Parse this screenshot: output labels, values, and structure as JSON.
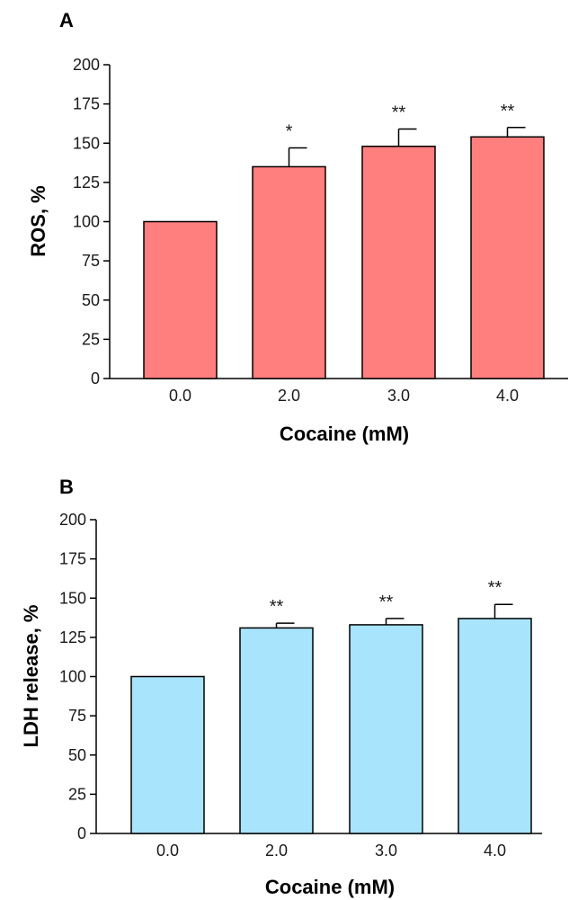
{
  "chart_data": [
    {
      "type": "bar",
      "panel_label": "A",
      "categories": [
        "0.0",
        "2.0",
        "3.0",
        "4.0"
      ],
      "values": [
        100,
        135,
        148,
        154
      ],
      "error_plus": [
        0,
        12,
        11,
        6
      ],
      "significance": [
        "",
        "*",
        "**",
        "**"
      ],
      "xlabel": "Cocaine (mM)",
      "ylabel": "ROS, %",
      "ylim": [
        0,
        200
      ],
      "yticks": [
        0,
        25,
        50,
        75,
        100,
        125,
        150,
        175,
        200
      ],
      "bar_color": "#ff7f7f",
      "grid": false
    },
    {
      "type": "bar",
      "panel_label": "B",
      "categories": [
        "0.0",
        "2.0",
        "3.0",
        "4.0"
      ],
      "values": [
        100,
        131,
        133,
        137
      ],
      "error_plus": [
        0,
        3,
        4,
        9
      ],
      "significance": [
        "",
        "**",
        "**",
        "**"
      ],
      "xlabel": "Cocaine (mM)",
      "ylabel": "LDH release, %",
      "ylim": [
        0,
        200
      ],
      "yticks": [
        0,
        25,
        50,
        75,
        100,
        125,
        150,
        175,
        200
      ],
      "bar_color": "#a8e4fb",
      "grid": false
    }
  ]
}
